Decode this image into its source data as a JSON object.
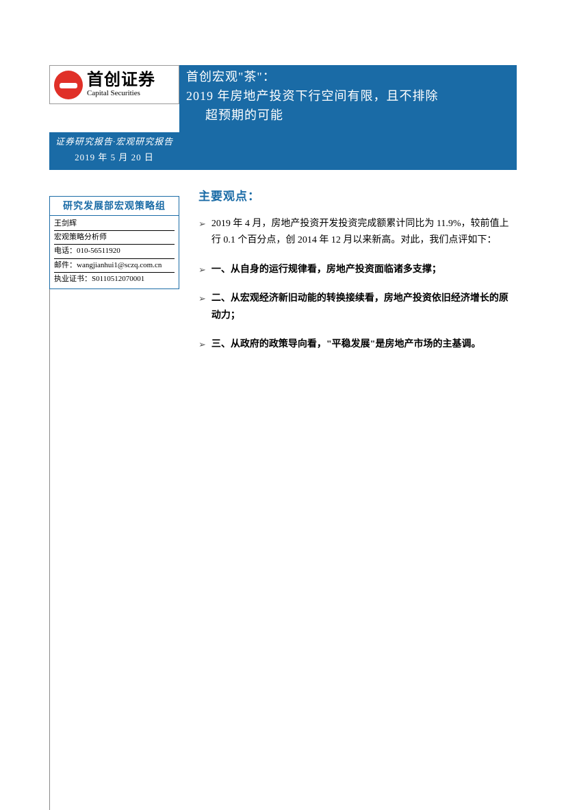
{
  "colors": {
    "brand_blue": "#1a6ba6",
    "logo_red": "#e03028",
    "text_black": "#000000",
    "background": "#ffffff",
    "rule_gray": "#888888"
  },
  "logo": {
    "cn": "首创证券",
    "en": "Capital Securities"
  },
  "title": {
    "line1": "首创宏观\"茶\"：",
    "line2": "2019 年房地产投资下行空间有限，且不排除",
    "line3": "超预期的可能"
  },
  "subheader": {
    "report_type": "证券研究报告·宏观研究报告",
    "date": "2019 年 5 月 20 日"
  },
  "analyst_box": {
    "title": "研究发展部宏观策略组",
    "name": "王剑辉",
    "role": "宏观策略分析师",
    "phone_label": "电话：",
    "phone": "010-56511920",
    "email_label": "邮件：",
    "email": "wangjianhui1@sczq.com.cn",
    "cert_label": "执业证书：",
    "cert": "S0110512070001"
  },
  "main": {
    "section_title": "主要观点：",
    "bullets": [
      {
        "text": "2019 年 4 月，房地产投资开发投资完成额累计同比为 11.9%，较前值上行 0.1 个百分点，创 2014 年 12 月以来新高。对此，我们点评如下：",
        "bold": false
      },
      {
        "text": "一、从自身的运行规律看，房地产投资面临诸多支撑；",
        "bold": true
      },
      {
        "text": "二、从宏观经济新旧动能的转换接续看，房地产投资依旧经济增长的原动力；",
        "bold": true
      },
      {
        "text": "三、从政府的政策导向看，\"平稳发展\"是房地产市场的主基调。",
        "bold": true
      }
    ]
  }
}
